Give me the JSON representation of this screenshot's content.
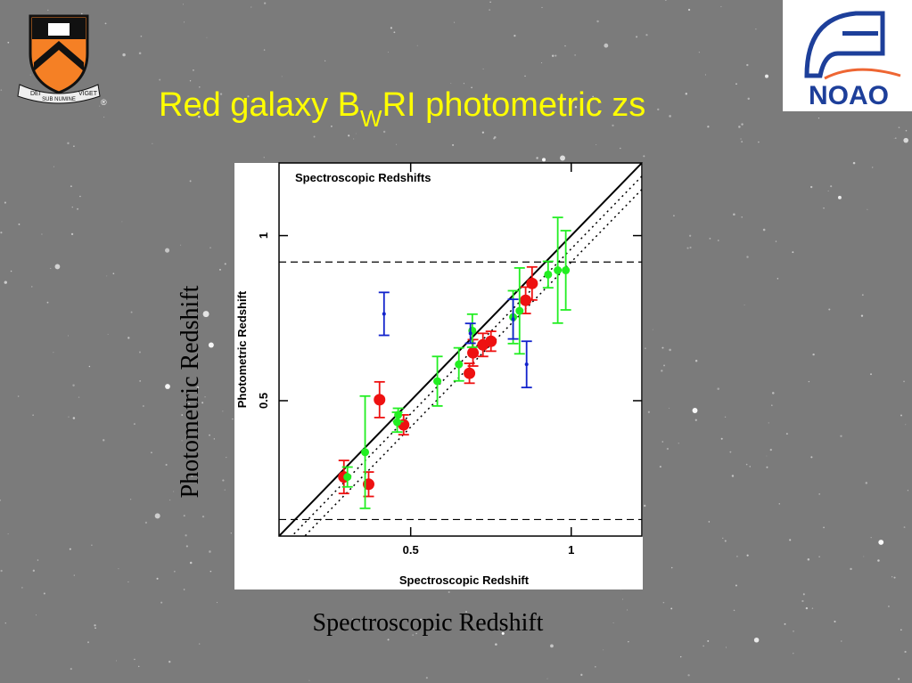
{
  "slide": {
    "title_main": "Red galaxy B",
    "title_sub": "W",
    "title_end": "RI photometric zs",
    "xlabel": "Spectroscopic Redshift",
    "ylabel": "Photometric Redshift",
    "logo_left": {
      "motto_left": "DEI",
      "motto_mid": "SUB NUMINE",
      "motto_right": "VIGET",
      "mark": "®"
    },
    "logo_right": {
      "text": "NOAO"
    }
  },
  "chart_data": {
    "type": "scatter",
    "annotation": "Spectroscopic Redshifts",
    "xlabel": "Spectroscopic Redshift",
    "ylabel": "Photometric Redshift",
    "xlim": [
      0.09,
      1.22
    ],
    "ylim": [
      0.09,
      1.22
    ],
    "xticks": [
      0.5,
      1
    ],
    "yticks": [
      0.5,
      1
    ],
    "diagonal_offsets": [
      0,
      0.04,
      0.08
    ],
    "hlines": [
      0.92,
      0.14
    ],
    "series": [
      {
        "color": "#ee1111",
        "x": [
          0.292,
          0.369,
          0.403,
          0.478,
          0.683,
          0.694,
          0.725,
          0.75,
          0.858,
          0.878
        ],
        "values": [
          0.269,
          0.247,
          0.503,
          0.427,
          0.583,
          0.645,
          0.669,
          0.68,
          0.804,
          0.855
        ],
        "errors": [
          0.05,
          0.037,
          0.054,
          0.03,
          0.03,
          0.04,
          0.035,
          0.03,
          0.04,
          0.05
        ]
      },
      {
        "color": "#22ee22",
        "x": [
          0.303,
          0.358,
          0.458,
          0.461,
          0.583,
          0.65,
          0.692,
          0.819,
          0.839,
          0.928,
          0.958,
          0.983
        ],
        "values": [
          0.269,
          0.344,
          0.435,
          0.457,
          0.559,
          0.61,
          0.712,
          0.753,
          0.772,
          0.882,
          0.895,
          0.895
        ],
        "errors": [
          0.03,
          0.17,
          0.03,
          0.02,
          0.075,
          0.05,
          0.05,
          0.08,
          0.13,
          0.04,
          0.16,
          0.12
        ]
      },
      {
        "color": "#1122cc",
        "x": [
          0.417,
          0.686,
          0.819,
          0.861
        ],
        "values": [
          0.763,
          0.704,
          0.747,
          0.61
        ],
        "errors": [
          0.065,
          0.03,
          0.06,
          0.07
        ]
      }
    ]
  }
}
